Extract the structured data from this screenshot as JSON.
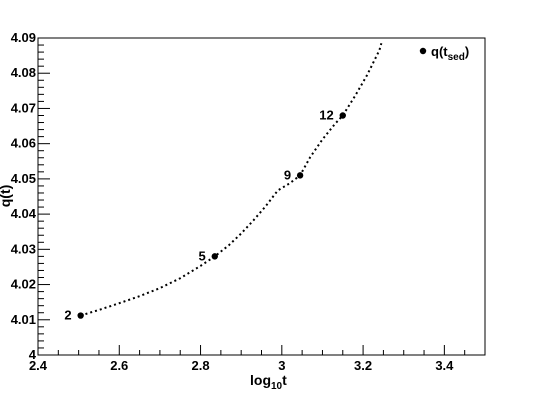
{
  "chart_data": {
    "type": "scatter",
    "title": "",
    "xlabel": "log",
    "xlabel_sub": "10",
    "xlabel_tail": "t",
    "ylabel": "q(t)",
    "xlim": [
      2.4,
      3.5
    ],
    "ylim": [
      4.0,
      4.09
    ],
    "x_ticks": [
      2.4,
      2.6,
      2.8,
      3.0,
      3.2,
      3.4
    ],
    "x_tick_labels": [
      "2.4",
      "2.6",
      "2.8",
      "3",
      "3.2",
      "3.4"
    ],
    "y_ticks": [
      4.0,
      4.01,
      4.02,
      4.03,
      4.04,
      4.05,
      4.06,
      4.07,
      4.08,
      4.09
    ],
    "y_tick_labels": [
      "4",
      "4.01",
      "4.02",
      "4.03",
      "4.04",
      "4.05",
      "4.06",
      "4.07",
      "4.08",
      "4.09"
    ],
    "grid": false,
    "legend_position": "top-right",
    "series": [
      {
        "legend_main": "q(t",
        "legend_sub": "sed",
        "legend_tail": ")",
        "marker": "circle",
        "color": "#000000",
        "points": [
          {
            "x": 2.505,
            "y": 4.0112,
            "label": "2"
          },
          {
            "x": 2.835,
            "y": 4.028,
            "label": "5"
          },
          {
            "x": 3.045,
            "y": 4.051,
            "label": "9"
          },
          {
            "x": 3.15,
            "y": 4.068,
            "label": "12"
          }
        ]
      }
    ],
    "fit_curve": {
      "style": "dotted",
      "color": "#000000",
      "x": [
        2.505,
        2.55,
        2.6,
        2.65,
        2.7,
        2.75,
        2.8,
        2.835,
        2.87,
        2.9,
        2.93,
        2.96,
        2.99,
        3.02,
        3.045,
        3.07,
        3.1,
        3.13,
        3.15,
        3.18,
        3.21,
        3.24,
        3.245
      ],
      "y": [
        4.0112,
        4.0128,
        4.0147,
        4.0167,
        4.019,
        4.0218,
        4.0253,
        4.028,
        4.0312,
        4.0345,
        4.0382,
        4.0422,
        4.0467,
        4.0488,
        4.051,
        4.0562,
        4.0612,
        4.0655,
        4.068,
        4.0735,
        4.0795,
        4.0865,
        4.0885
      ]
    }
  }
}
